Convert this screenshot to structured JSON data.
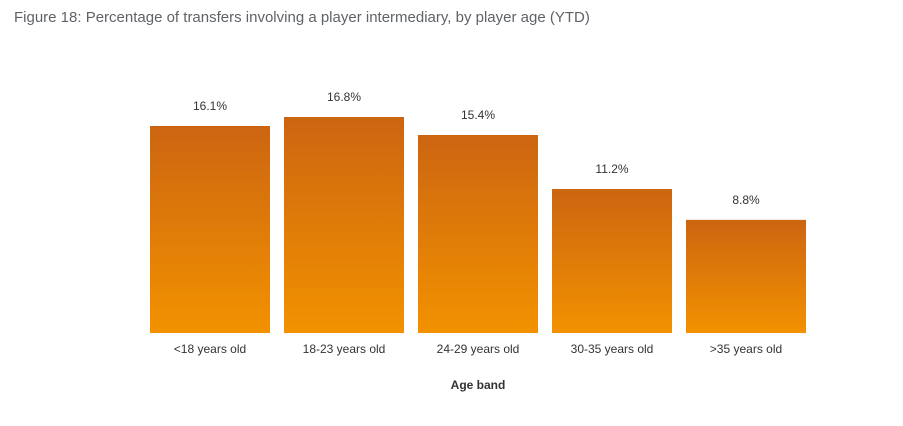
{
  "figure": {
    "title": "Figure 18: Percentage of transfers involving a player intermediary, by player age (YTD)"
  },
  "chart_data": {
    "type": "bar",
    "categories": [
      "<18 years old",
      "18-23 years old",
      "24-29 years old",
      "30-35 years old",
      ">35 years old"
    ],
    "values": [
      16.1,
      16.8,
      15.4,
      11.2,
      8.8
    ],
    "value_labels": [
      "16.1%",
      "16.8%",
      "15.4%",
      "11.2%",
      "8.8%"
    ],
    "title": "Figure 18: Percentage of transfers involving a player intermediary, by player age (YTD)",
    "xlabel": "Age band",
    "ylabel": "",
    "ylim": [
      0,
      16.8
    ],
    "grid": false,
    "colors": {
      "bar_top": "#cc6511",
      "bar_bottom": "#f29200",
      "text": "#333333"
    }
  }
}
